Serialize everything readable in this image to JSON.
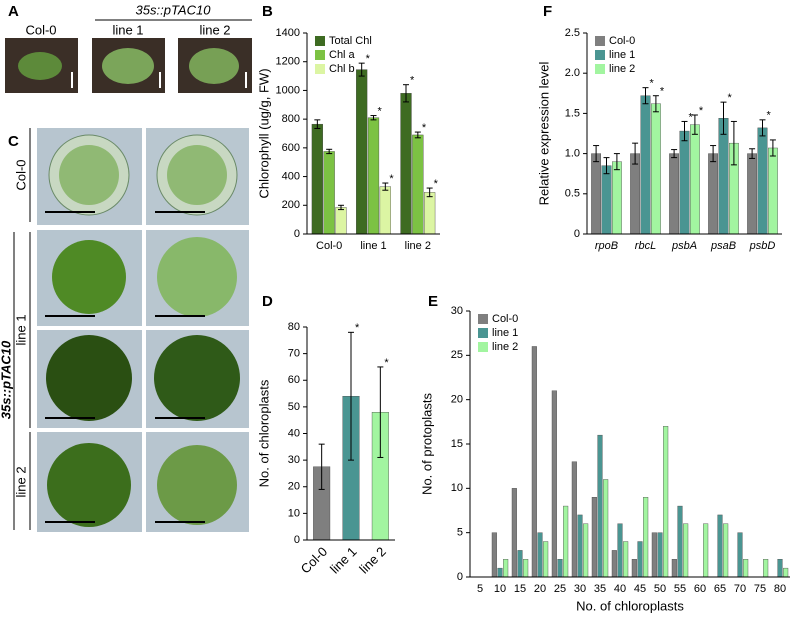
{
  "panel_labels": [
    "A",
    "B",
    "C",
    "D",
    "E",
    "F"
  ],
  "photos": {
    "a_col0": "Col-0",
    "construct": "35s::pTAC10",
    "a_line1": "line 1",
    "a_line2": "line 2",
    "c_col0": "Col-0",
    "c_construct": "35s::pTAC10",
    "c_line1": "line 1",
    "c_line2": "line 2"
  },
  "chart_data": [
    {
      "type": "bar",
      "ylabel": "Chlorophyll (ug/g, FW)",
      "categories": [
        "Col-0",
        "line 1",
        "line 2"
      ],
      "ylim": [
        0,
        1400
      ],
      "yticks": [
        0,
        200,
        400,
        600,
        800,
        1000,
        1200,
        1400
      ],
      "legend": "top-left",
      "series": [
        {
          "name": "Total Chl",
          "color": "#3e6b22",
          "values": [
            765,
            1145,
            980
          ],
          "errors": [
            30,
            45,
            60
          ],
          "annotations": [
            null,
            "*",
            "*"
          ]
        },
        {
          "name": "Chl a",
          "color": "#7cc243",
          "values": [
            575,
            810,
            690
          ],
          "errors": [
            15,
            15,
            20
          ],
          "annotations": [
            null,
            "*",
            "*"
          ]
        },
        {
          "name": "Chl b",
          "color": "#dcf5a3",
          "values": [
            185,
            330,
            290
          ],
          "errors": [
            15,
            25,
            30
          ],
          "annotations": [
            null,
            "*",
            "*"
          ]
        }
      ]
    },
    {
      "type": "bar",
      "ylabel": "No. of chloroplasts",
      "categories": [
        "Col-0",
        "line 1",
        "line 2"
      ],
      "ylim": [
        0,
        80
      ],
      "yticks": [
        0,
        10,
        20,
        30,
        40,
        50,
        60,
        70,
        80
      ],
      "colors": [
        "#7f7f7f",
        "#4a9592",
        "#a2f5a0"
      ],
      "values": [
        27.5,
        54,
        48
      ],
      "errors": [
        8.5,
        24,
        17
      ],
      "annotations": [
        null,
        "*",
        "*"
      ]
    },
    {
      "type": "bar",
      "xlabel": "No. of chloroplasts",
      "ylabel": "No. of protoplasts",
      "categories": [
        5,
        10,
        15,
        20,
        25,
        30,
        35,
        40,
        45,
        50,
        55,
        60,
        65,
        70,
        75,
        80
      ],
      "ylim": [
        0,
        30
      ],
      "yticks": [
        0,
        5,
        10,
        15,
        20,
        25,
        30
      ],
      "legend": "top-left",
      "series": [
        {
          "name": "Col-0",
          "color": "#7f7f7f",
          "values": [
            0,
            5,
            10,
            26,
            21,
            13,
            9,
            3,
            2,
            5,
            2,
            0,
            0,
            0,
            0,
            0
          ]
        },
        {
          "name": "line 1",
          "color": "#4a9592",
          "values": [
            0,
            1,
            3,
            5,
            2,
            7,
            16,
            6,
            4,
            5,
            8,
            0,
            7,
            5,
            0,
            2
          ]
        },
        {
          "name": "line 2",
          "color": "#a2f5a0",
          "values": [
            0,
            2,
            2,
            4,
            8,
            6,
            11,
            4,
            9,
            17,
            6,
            6,
            6,
            2,
            2,
            1
          ]
        }
      ]
    },
    {
      "type": "bar",
      "ylabel": "Relative expression level",
      "categories": [
        "rpoB",
        "rbcL",
        "psbA",
        "psaB",
        "psbD"
      ],
      "italic_categories": true,
      "ylim": [
        0,
        2.5
      ],
      "yticks": [
        0,
        0.5,
        {
          "value": 1,
          "label": "1.0"
        },
        1.5,
        {
          "value": 2,
          "label": "2.0"
        },
        2.5
      ],
      "legend": "top-left",
      "series": [
        {
          "name": "Col-0",
          "color": "#7f7f7f",
          "values": [
            1,
            1,
            1,
            1,
            1
          ],
          "errors": [
            0.1,
            0.13,
            0.05,
            0.1,
            0.06
          ],
          "annotations": [
            null,
            null,
            null,
            null,
            null
          ]
        },
        {
          "name": "line 1",
          "color": "#4a9592",
          "values": [
            0.85,
            1.72,
            1.28,
            1.44,
            1.32
          ],
          "errors": [
            0.1,
            0.1,
            0.12,
            0.2,
            0.1
          ],
          "annotations": [
            null,
            "*",
            "*",
            "*",
            "*"
          ]
        },
        {
          "name": "line 2",
          "color": "#a2f5a0",
          "values": [
            0.9,
            1.62,
            1.36,
            1.13,
            1.07
          ],
          "errors": [
            0.1,
            0.1,
            0.12,
            0.27,
            0.1
          ],
          "annotations": [
            null,
            "*",
            "*",
            null,
            null
          ]
        }
      ]
    }
  ]
}
